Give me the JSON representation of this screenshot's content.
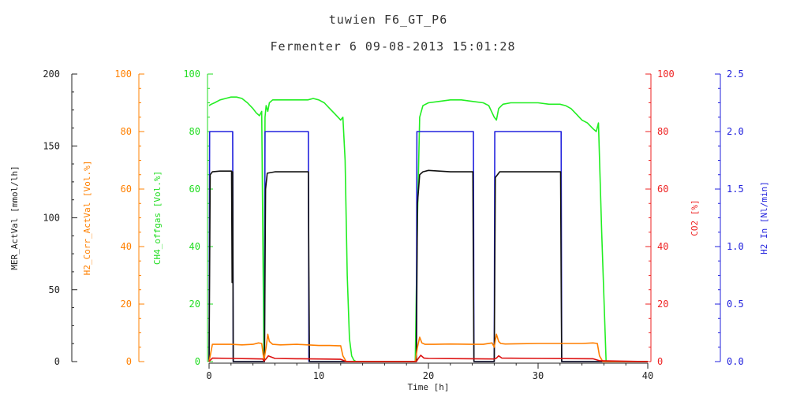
{
  "chart_data": {
    "type": "line",
    "title": "tuwien   F6_GT_P6",
    "subtitle": "Fermenter 6   09-08-2013   15:01:28",
    "xlabel": "Time [h]",
    "xlim": [
      0,
      40
    ],
    "x_ticks": [
      "0",
      "10",
      "20",
      "30",
      "40"
    ],
    "grid": false,
    "axes": [
      {
        "id": "mer",
        "label": "MER_ActVal  [mmol/lh]",
        "color": "#222222",
        "side": "left",
        "ylim": [
          0,
          200
        ],
        "ticks": [
          "0",
          "50",
          "100",
          "150",
          "200"
        ]
      },
      {
        "id": "h2corr",
        "label": "H2_Corr_ActVal  [Vol.%]",
        "color": "#ff8000",
        "side": "left",
        "ylim": [
          0,
          100
        ],
        "ticks": [
          "0",
          "20",
          "40",
          "60",
          "80",
          "100"
        ]
      },
      {
        "id": "ch4",
        "label": "CH4_offgas  [Vol.%]",
        "color": "#22dd22",
        "side": "left",
        "ylim": [
          0,
          100
        ],
        "ticks": [
          "0",
          "20",
          "40",
          "60",
          "80",
          "100"
        ]
      },
      {
        "id": "co2",
        "label": "CO2  [%]",
        "color": "#ee2222",
        "side": "right",
        "ylim": [
          0,
          100
        ],
        "ticks": [
          "0",
          "20",
          "40",
          "60",
          "80",
          "100"
        ]
      },
      {
        "id": "h2in",
        "label": "H2 In  [Nl/min]",
        "color": "#2222dd",
        "side": "right",
        "ylim": [
          0,
          2.5
        ],
        "ticks": [
          "0.0",
          "0.5",
          "1.0",
          "1.5",
          "2.0",
          "2.5"
        ]
      }
    ],
    "series": [
      {
        "axis": "ch4",
        "color": "#22ee22",
        "x": [
          0,
          0.2,
          0.5,
          1,
          1.5,
          2,
          2.5,
          3,
          3.5,
          4,
          4.3,
          4.6,
          4.8,
          5.0,
          5.1,
          5.2,
          5.35,
          5.5,
          5.8,
          6.5,
          7,
          8,
          8.5,
          9,
          9.5,
          10,
          10.5,
          11,
          11.5,
          12,
          12.2,
          12.4,
          12.6,
          12.8,
          13,
          13.2,
          13.4,
          14,
          15,
          16,
          17,
          18,
          18.8,
          19.0,
          19.2,
          19.5,
          20,
          21,
          22,
          23,
          24,
          25,
          25.5,
          26,
          26.2,
          26.4,
          26.8,
          27.5,
          28,
          29,
          30,
          31,
          32,
          32.5,
          33,
          33.5,
          34,
          34.5,
          35,
          35.3,
          35.5,
          35.8,
          36.2,
          37,
          38,
          40
        ],
        "y": [
          89,
          89.5,
          90,
          91,
          91.5,
          92,
          92,
          91.5,
          90,
          88,
          86.5,
          85.5,
          87,
          1,
          85,
          89,
          87,
          90,
          91,
          91,
          91,
          91,
          91,
          91,
          91.5,
          91,
          90,
          88,
          86,
          84,
          85,
          70,
          30,
          8,
          2,
          0.5,
          0,
          0,
          0,
          0,
          0,
          0,
          0,
          50,
          85,
          89,
          90,
          90.5,
          91,
          91,
          90.5,
          90,
          89,
          85,
          84,
          88,
          89.5,
          90,
          90,
          90,
          90,
          89.5,
          89.5,
          89,
          88,
          86,
          84,
          83,
          81,
          80,
          83,
          45,
          0,
          0,
          0,
          0
        ]
      },
      {
        "axis": "h2in",
        "color": "#2222dd",
        "x": [
          0,
          0.05,
          2.15,
          2.2,
          5.05,
          5.1,
          9.05,
          9.1,
          18.9,
          18.95,
          24.1,
          24.15,
          26.0,
          26.05,
          32.1,
          32.15,
          40
        ],
        "y": [
          0,
          2.0,
          2.0,
          0,
          0,
          2.0,
          2.0,
          0,
          0,
          2.0,
          2.0,
          0,
          0,
          2.0,
          2.0,
          0,
          0
        ]
      },
      {
        "axis": "mer",
        "color": "#111111",
        "x": [
          0,
          0.1,
          0.3,
          1,
          2.05,
          2.1,
          2.15,
          2.2,
          5.05,
          5.15,
          5.3,
          6,
          8,
          9.05,
          9.1,
          9.15,
          18.9,
          19.0,
          19.2,
          19.5,
          20,
          22,
          24.05,
          24.1,
          24.15,
          26.0,
          26.1,
          26.5,
          28,
          30,
          32.05,
          32.1,
          32.15,
          40
        ],
        "y": [
          0,
          130,
          132,
          132.5,
          132.5,
          55,
          132,
          0,
          0,
          120,
          131,
          132,
          132,
          132,
          60,
          0,
          0,
          110,
          130,
          132,
          133,
          132,
          132,
          60,
          0,
          0,
          128,
          132,
          132,
          132,
          132,
          60,
          0,
          0
        ]
      },
      {
        "axis": "h2corr",
        "color": "#ff7f00",
        "x": [
          0,
          0.3,
          1,
          2,
          3,
          4,
          4.5,
          4.8,
          5.0,
          5.2,
          5.35,
          5.5,
          5.8,
          6.5,
          8,
          9,
          10,
          11,
          11.8,
          12.0,
          12.2,
          12.5,
          18.8,
          19.0,
          19.2,
          19.4,
          19.7,
          20.5,
          22,
          24,
          25,
          25.8,
          26.0,
          26.2,
          26.4,
          26.6,
          27,
          28,
          30,
          32,
          33,
          34,
          35,
          35.4,
          35.6,
          35.9,
          40
        ],
        "y": [
          0,
          6,
          6,
          6,
          5.8,
          6,
          6.5,
          6.3,
          0.5,
          5,
          9.5,
          7,
          6,
          5.8,
          6,
          5.8,
          5.6,
          5.6,
          5.5,
          5.5,
          2,
          0,
          0,
          5,
          8.5,
          6.5,
          6,
          6,
          6.1,
          6,
          6,
          6.5,
          5,
          9.5,
          7,
          6.3,
          6.1,
          6.2,
          6.3,
          6.3,
          6.3,
          6.3,
          6.5,
          6.3,
          2,
          0,
          0
        ]
      },
      {
        "axis": "co2",
        "color": "#dd1111",
        "x": [
          0,
          0.3,
          2,
          4,
          4.9,
          5.0,
          5.2,
          5.4,
          6,
          8,
          10,
          12,
          12.5,
          18.9,
          19.1,
          19.3,
          19.6,
          20,
          24,
          26,
          26.2,
          26.4,
          26.7,
          30,
          35,
          35.6,
          40
        ],
        "y": [
          0,
          1.2,
          1.1,
          1.0,
          0.9,
          0.2,
          1.0,
          2.0,
          1.1,
          1.0,
          0.9,
          0.8,
          0,
          0,
          1.2,
          2.2,
          1.2,
          1.1,
          1.0,
          0.9,
          1.2,
          2.0,
          1.2,
          1.1,
          1.0,
          0.3,
          0
        ]
      }
    ]
  }
}
